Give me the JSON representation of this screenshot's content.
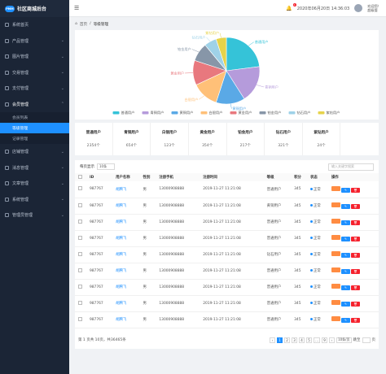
{
  "sidebar": {
    "brand": "社区商城后台",
    "logo": "PMM",
    "items": [
      {
        "label": "系统首页",
        "icon": "home-icon",
        "chev": ""
      },
      {
        "label": "产品管理",
        "icon": "box-icon",
        "chev": "⌄"
      },
      {
        "label": "图片管理",
        "icon": "image-icon",
        "chev": "⌄"
      },
      {
        "label": "交易管理",
        "icon": "trade-icon",
        "chev": "⌄"
      },
      {
        "label": "支付管理",
        "icon": "payment-icon",
        "chev": "⌄"
      },
      {
        "label": "会员管理",
        "icon": "user-icon",
        "chev": "⌃"
      }
    ],
    "sub": [
      "会员列表",
      "等级管理",
      "记录管理"
    ],
    "items2": [
      {
        "label": "店铺管理",
        "icon": "shop-icon",
        "chev": "⌄"
      },
      {
        "label": "消息管理",
        "icon": "message-icon",
        "chev": "⌄"
      },
      {
        "label": "文章管理",
        "icon": "article-icon",
        "chev": "⌄"
      },
      {
        "label": "系统管理",
        "icon": "gear-icon",
        "chev": "⌄"
      },
      {
        "label": "管理员管理",
        "icon": "admin-icon",
        "chev": "⌄"
      }
    ]
  },
  "header": {
    "menu_icon": "☰",
    "bell_badge": "1",
    "datetime": "2020年06月20日 14:36:03",
    "user_line1": "欢迎您！",
    "user_line2": "超级管"
  },
  "breadcrumb": {
    "home": "首页",
    "sep": "/",
    "current": "等级管理"
  },
  "chart_data": {
    "type": "pie",
    "colors": [
      "#35c3d8",
      "#b59bdb",
      "#5aa9e6",
      "#ffc078",
      "#e8787e",
      "#8796a8",
      "#9fd2e8",
      "#e6d34a"
    ],
    "slices": [
      {
        "label": "普通用户",
        "value": 23
      },
      {
        "label": "青铜用户",
        "value": 18
      },
      {
        "label": "黄铜用户",
        "value": 14
      },
      {
        "label": "白银用户",
        "value": 13
      },
      {
        "label": "黄金用户",
        "value": 12
      },
      {
        "label": "铂金用户",
        "value": 9
      },
      {
        "label": "钻石用户",
        "value": 6
      },
      {
        "label": "紫钻用户",
        "value": 5
      }
    ],
    "label_texts": [
      "普通用户",
      "青铜用户",
      "黄铜用户",
      "白银用户",
      "黄金用户",
      "铂金用户",
      "钻石用户",
      "紫钻用户"
    ],
    "legend": [
      "普通用户",
      "青铜用户",
      "黄铜用户",
      "白银用户",
      "黄金用户",
      "铂金用户",
      "钻石用户",
      "紫钻用户"
    ],
    "legend_position": "bottom"
  },
  "stats": [
    {
      "label": "普通用户",
      "value": "2354个"
    },
    {
      "label": "青铜用户",
      "value": "654个"
    },
    {
      "label": "白银用户",
      "value": "123个"
    },
    {
      "label": "黄金用户",
      "value": "354个"
    },
    {
      "label": "铂金用户",
      "value": "217个"
    },
    {
      "label": "钻石用户",
      "value": "321个"
    },
    {
      "label": "紫钻用户",
      "value": "24个"
    }
  ],
  "table": {
    "page_size_label": "每页显示",
    "page_size": "10条",
    "search_placeholder": "输入关键字搜索",
    "headers": [
      "",
      "ID",
      "用户名称",
      "性别",
      "注册手机",
      "注册时间",
      "等级",
      "积分",
      "状态",
      "操作"
    ],
    "rows": [
      {
        "id": "987767",
        "name": "胡腾飞",
        "sex": "男",
        "phone": "13000908888",
        "time": "2019-11-27 11:21:08",
        "level": "普通用户",
        "points": "345",
        "status": "正常"
      },
      {
        "id": "987767",
        "name": "胡腾飞",
        "sex": "男",
        "phone": "13000908888",
        "time": "2019-11-27 11:21:08",
        "level": "黄铜用户",
        "points": "345",
        "status": "正常"
      },
      {
        "id": "987767",
        "name": "胡腾飞",
        "sex": "男",
        "phone": "13000908888",
        "time": "2019-11-27 11:21:08",
        "level": "普通用户",
        "points": "345",
        "status": "正常"
      },
      {
        "id": "987767",
        "name": "胡腾飞",
        "sex": "男",
        "phone": "13000908888",
        "time": "2019-11-27 11:21:08",
        "level": "普通用户",
        "points": "345",
        "status": "正常"
      },
      {
        "id": "987767",
        "name": "胡腾飞",
        "sex": "男",
        "phone": "13000908888",
        "time": "2019-11-27 11:21:08",
        "level": "钻石用户",
        "points": "345",
        "status": "正常"
      },
      {
        "id": "987767",
        "name": "胡腾飞",
        "sex": "男",
        "phone": "13000908888",
        "time": "2019-11-27 11:21:08",
        "level": "普通用户",
        "points": "345",
        "status": "正常"
      },
      {
        "id": "987767",
        "name": "胡腾飞",
        "sex": "男",
        "phone": "13000908888",
        "time": "2019-11-27 11:21:08",
        "level": "普通用户",
        "points": "345",
        "status": "正常"
      },
      {
        "id": "987767",
        "name": "胡腾飞",
        "sex": "男",
        "phone": "13000908888",
        "time": "2019-11-27 11:21:08",
        "level": "普通用户",
        "points": "345",
        "status": "正常"
      },
      {
        "id": "987767",
        "name": "胡腾飞",
        "sex": "男",
        "phone": "13000908888",
        "time": "2019-11-27 11:21:08",
        "level": "普通用户",
        "points": "345",
        "status": "正常"
      }
    ],
    "actions": [
      "",
      "✎",
      "🗑"
    ]
  },
  "pagination": {
    "summary": "第 1 页共 10页，共36465条",
    "prev": "‹",
    "pages": [
      "1",
      "2",
      "3",
      "4",
      "5"
    ],
    "ellipsis": "…",
    "last": "9",
    "next": "›",
    "per_page": "10条/页",
    "jump_label": "跳至",
    "jump_unit": "页"
  }
}
